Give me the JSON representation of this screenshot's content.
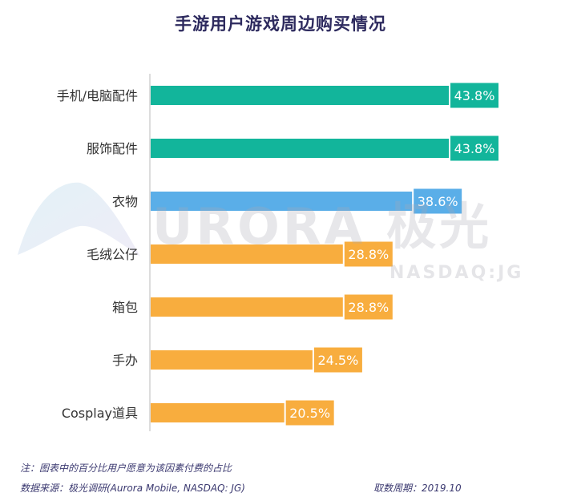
{
  "title": "手游用户游戏周边购买情况",
  "watermark": {
    "brand": "URORA 极光",
    "sub": "NASDAQ:JG"
  },
  "footer": {
    "note": "注：图表中的百分比用户愿意为该因素付费的占比",
    "source": "数据来源：极光调研(Aurora Mobile, NASDAQ: JG)",
    "period": "取数周期：2019.10"
  },
  "colors": {
    "green": "#12b59b",
    "blue": "#5aaee8",
    "orange": "#f8ad3e",
    "axis": "#bbbbbb",
    "label": "#333333"
  },
  "chart_data": {
    "type": "bar",
    "orientation": "horizontal",
    "categories": [
      "手机/电脑配件",
      "服饰配件",
      "衣物",
      "毛绒公仔",
      "箱包",
      "手办",
      "Cosplay道具"
    ],
    "values": [
      43.8,
      43.8,
      38.6,
      28.8,
      28.8,
      24.5,
      20.5
    ],
    "value_labels": [
      "43.8%",
      "43.8%",
      "38.6%",
      "28.8%",
      "28.8%",
      "24.5%",
      "20.5%"
    ],
    "bar_colors": [
      "green",
      "green",
      "blue",
      "orange",
      "orange",
      "orange",
      "orange"
    ],
    "xlim": [
      0,
      50
    ],
    "grid": false
  }
}
